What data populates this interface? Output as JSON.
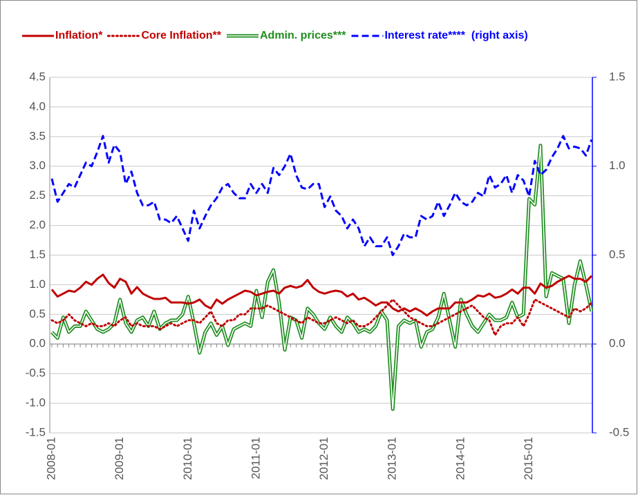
{
  "chart_data": {
    "type": "line",
    "categories": [
      "2008-01",
      null,
      null,
      null,
      null,
      null,
      null,
      null,
      null,
      null,
      null,
      null,
      "2009-01",
      null,
      null,
      null,
      null,
      null,
      null,
      null,
      null,
      null,
      null,
      null,
      "2010-01",
      null,
      null,
      null,
      null,
      null,
      null,
      null,
      null,
      null,
      null,
      null,
      "2011-01",
      null,
      null,
      null,
      null,
      null,
      null,
      null,
      null,
      null,
      null,
      null,
      "2012-01",
      null,
      null,
      null,
      null,
      null,
      null,
      null,
      null,
      null,
      null,
      null,
      "2013-01",
      null,
      null,
      null,
      null,
      null,
      null,
      null,
      null,
      null,
      null,
      null,
      "2014-01",
      null,
      null,
      null,
      null,
      null,
      null,
      null,
      null,
      null,
      null,
      null,
      "2015-01",
      null,
      null,
      null,
      null,
      null,
      null,
      null,
      null,
      null,
      null,
      null
    ],
    "series": [
      {
        "name": "Inflation*",
        "color": "#c00000",
        "line_style": "solid",
        "values": [
          0.92,
          0.8,
          0.85,
          0.9,
          0.88,
          0.95,
          1.05,
          1.0,
          1.1,
          1.17,
          1.03,
          0.95,
          1.1,
          1.05,
          0.85,
          0.96,
          0.85,
          0.8,
          0.76,
          0.76,
          0.78,
          0.7,
          0.7,
          0.7,
          0.68,
          0.7,
          0.75,
          0.65,
          0.6,
          0.75,
          0.68,
          0.75,
          0.8,
          0.85,
          0.9,
          0.88,
          0.82,
          0.85,
          0.88,
          0.9,
          0.85,
          0.95,
          0.98,
          0.95,
          0.98,
          1.08,
          0.95,
          0.88,
          0.85,
          0.88,
          0.9,
          0.88,
          0.8,
          0.85,
          0.75,
          0.78,
          0.72,
          0.65,
          0.7,
          0.7,
          0.6,
          0.55,
          0.6,
          0.55,
          0.6,
          0.55,
          0.48,
          0.55,
          0.6,
          0.6,
          0.6,
          0.7,
          0.7,
          0.7,
          0.75,
          0.82,
          0.8,
          0.85,
          0.78,
          0.8,
          0.85,
          0.92,
          0.85,
          0.95,
          0.95,
          0.85,
          1.02,
          0.95,
          0.98,
          1.05,
          1.1,
          1.15,
          1.1,
          1.1,
          1.05,
          1.15
        ]
      },
      {
        "name": "Core Inflation**",
        "color": "#c00000",
        "line_style": "dotted",
        "values": [
          0.4,
          0.35,
          0.4,
          0.5,
          0.4,
          0.35,
          0.3,
          0.35,
          0.3,
          0.3,
          0.35,
          0.3,
          0.4,
          0.45,
          0.3,
          0.35,
          0.3,
          0.3,
          0.3,
          0.25,
          0.3,
          0.35,
          0.3,
          0.35,
          0.4,
          0.4,
          0.35,
          0.45,
          0.55,
          0.35,
          0.3,
          0.4,
          0.4,
          0.5,
          0.5,
          0.6,
          0.6,
          0.6,
          0.65,
          0.6,
          0.55,
          0.5,
          0.45,
          0.4,
          0.35,
          0.45,
          0.4,
          0.35,
          0.35,
          0.4,
          0.45,
          0.4,
          0.35,
          0.4,
          0.3,
          0.3,
          0.35,
          0.45,
          0.55,
          0.65,
          0.75,
          0.65,
          0.55,
          0.45,
          0.4,
          0.35,
          0.3,
          0.3,
          0.35,
          0.4,
          0.45,
          0.5,
          0.55,
          0.6,
          0.65,
          0.55,
          0.45,
          0.4,
          0.15,
          0.3,
          0.35,
          0.35,
          0.45,
          0.3,
          0.5,
          0.75,
          0.7,
          0.65,
          0.6,
          0.55,
          0.5,
          0.45,
          0.6,
          0.55,
          0.6,
          0.7
        ]
      },
      {
        "name": "Admin. prices***",
        "color": "#1e8c1e",
        "line_style": "double",
        "values": [
          0.2,
          0.1,
          0.45,
          0.2,
          0.3,
          0.3,
          0.55,
          0.4,
          0.25,
          0.2,
          0.25,
          0.35,
          0.75,
          0.35,
          0.2,
          0.4,
          0.45,
          0.3,
          0.55,
          0.25,
          0.35,
          0.4,
          0.4,
          0.5,
          0.8,
          0.35,
          -0.15,
          0.2,
          0.35,
          0.15,
          0.3,
          -0.02,
          0.25,
          0.3,
          0.35,
          0.3,
          0.9,
          0.45,
          1.05,
          1.25,
          0.7,
          -0.1,
          0.45,
          0.4,
          0.1,
          0.6,
          0.5,
          0.35,
          0.25,
          0.45,
          0.3,
          0.2,
          0.45,
          0.35,
          0.2,
          0.25,
          0.2,
          0.3,
          0.55,
          0.4,
          -1.1,
          0.3,
          0.4,
          0.35,
          0.4,
          -0.05,
          0.2,
          0.25,
          0.45,
          0.85,
          0.4,
          -0.05,
          0.75,
          0.5,
          0.3,
          0.2,
          0.35,
          0.5,
          0.4,
          0.4,
          0.45,
          0.7,
          0.45,
          0.5,
          2.45,
          2.35,
          3.35,
          0.8,
          1.2,
          1.15,
          1.1,
          0.35,
          1.0,
          1.4,
          1.0,
          0.55
        ]
      },
      {
        "name": "Interest rate****  (right axis)",
        "color": "#0000ff",
        "line_style": "dashed",
        "axis": "y2",
        "values": [
          0.93,
          0.8,
          0.85,
          0.9,
          0.88,
          0.95,
          1.02,
          1.0,
          1.08,
          1.17,
          1.02,
          1.12,
          1.08,
          0.9,
          0.97,
          0.85,
          0.78,
          0.78,
          0.8,
          0.7,
          0.7,
          0.68,
          0.72,
          0.65,
          0.58,
          0.75,
          0.65,
          0.72,
          0.78,
          0.82,
          0.88,
          0.9,
          0.85,
          0.82,
          0.82,
          0.9,
          0.85,
          0.9,
          0.85,
          0.99,
          0.95,
          1.0,
          1.07,
          0.95,
          0.88,
          0.87,
          0.9,
          0.9,
          0.77,
          0.83,
          0.75,
          0.72,
          0.65,
          0.7,
          0.65,
          0.55,
          0.6,
          0.55,
          0.55,
          0.6,
          0.5,
          0.55,
          0.62,
          0.6,
          0.6,
          0.72,
          0.7,
          0.72,
          0.8,
          0.72,
          0.78,
          0.85,
          0.8,
          0.78,
          0.8,
          0.85,
          0.83,
          0.95,
          0.88,
          0.9,
          0.95,
          0.85,
          0.95,
          0.92,
          0.83,
          1.03,
          0.95,
          0.98,
          1.05,
          1.1,
          1.17,
          1.1,
          1.11,
          1.1,
          1.06,
          1.15
        ]
      }
    ],
    "ylim": [
      -1.5,
      4.5
    ],
    "yticks": [
      -1.5,
      {
        "value": -1,
        "label": "-1.0"
      },
      -0.5,
      {
        "value": 0,
        "label": "0.0"
      },
      0.5,
      {
        "value": 1,
        "label": "1.0"
      },
      1.5,
      {
        "value": 2,
        "label": "2.0"
      },
      2.5,
      {
        "value": 3,
        "label": "3.0"
      },
      3.5,
      {
        "value": 4,
        "label": "4.0"
      },
      4.5
    ],
    "y2lim": [
      -0.5,
      1.5
    ],
    "y2ticks": [
      -0.5,
      {
        "value": 0,
        "label": "0.0"
      },
      0.5,
      {
        "value": 1,
        "label": "1.0"
      },
      1.5
    ],
    "grid": true,
    "legend": "top"
  }
}
